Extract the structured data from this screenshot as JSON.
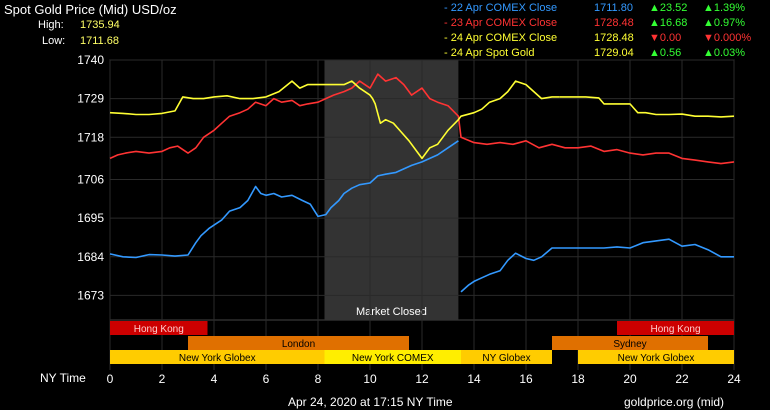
{
  "header": {
    "title": "Spot Gold Price (Mid) USD/oz",
    "high_label": "High:",
    "high_value": "1735.94",
    "low_label": "Low:",
    "low_value": "1711.68"
  },
  "legend": [
    {
      "name": "22 Apr COMEX Close",
      "value": "1711.80",
      "change": "▲23.52",
      "pct": "▲1.39%",
      "color": "#3399ff",
      "dir": "up"
    },
    {
      "name": "23 Apr COMEX Close",
      "value": "1728.48",
      "change": "▲16.68",
      "pct": "▲0.97%",
      "color": "#ff3333",
      "dir": "up"
    },
    {
      "name": "24 Apr COMEX Close",
      "value": "1728.48",
      "change": "▼0.00",
      "pct": "▼0.000%",
      "color": "#ffff33",
      "dir": "down"
    },
    {
      "name": "24 Apr Spot Gold",
      "value": "1729.04",
      "change": "▲0.56",
      "pct": "▲0.03%",
      "color": "#ffff33",
      "dir": "up"
    }
  ],
  "footer": {
    "timestamp": "Apr 24, 2020 at 17:15 NY Time",
    "source": "goldprice.org (mid)",
    "x_axis_label": "NY Time"
  },
  "market_closed_label": "Market Closed",
  "sessions": [
    {
      "label": "Hong Kong",
      "row": 0,
      "start": 0,
      "end": 3.75,
      "color": "#cc0000"
    },
    {
      "label": "Hong Kong",
      "row": 0,
      "start": 19.5,
      "end": 24,
      "color": "#cc0000"
    },
    {
      "label": "London",
      "row": 1,
      "start": 3,
      "end": 11.5,
      "color": "#e07000"
    },
    {
      "label": "Sydney",
      "row": 2,
      "start": 17,
      "end": 19.5,
      "color": "#e07000"
    },
    {
      "label": "Sydney",
      "row": 1,
      "start": 17,
      "end": 23,
      "color": "#e07000"
    },
    {
      "label": "New York Globex",
      "row": 2,
      "start": 0,
      "end": 8.25,
      "color": "#ffcc00"
    },
    {
      "label": "New York COMEX",
      "row": 2,
      "start": 8.25,
      "end": 13.5,
      "color": "#ffee00"
    },
    {
      "label": "NY Globex",
      "row": 2,
      "start": 13.5,
      "end": 17,
      "color": "#ffcc00"
    },
    {
      "label": "New York Globex",
      "row": 2,
      "start": 18,
      "end": 24,
      "color": "#ffcc00"
    }
  ],
  "chart_data": {
    "type": "line",
    "xlabel": "NY Time",
    "xlim": [
      0,
      24
    ],
    "ylim": [
      1666,
      1740
    ],
    "x_ticks": [
      0,
      2,
      4,
      6,
      8,
      10,
      12,
      14,
      16,
      18,
      20,
      22,
      24
    ],
    "y_ticks": [
      1740,
      1729,
      1718,
      1706,
      1695,
      1684,
      1673
    ],
    "grid": true,
    "market_closed_range": [
      8.25,
      13.4
    ],
    "series": [
      {
        "name": "22 Apr COMEX Close",
        "color": "#3399ff",
        "points": [
          [
            0,
            1684.8
          ],
          [
            0.5,
            1684
          ],
          [
            1,
            1683.8
          ],
          [
            1.5,
            1684.6
          ],
          [
            2,
            1684.5
          ],
          [
            2.5,
            1684.2
          ],
          [
            3,
            1684.5
          ],
          [
            3.3,
            1688
          ],
          [
            3.5,
            1690
          ],
          [
            3.8,
            1692
          ],
          [
            4,
            1693
          ],
          [
            4.3,
            1694.5
          ],
          [
            4.6,
            1697
          ],
          [
            5,
            1698
          ],
          [
            5.3,
            1700
          ],
          [
            5.6,
            1704
          ],
          [
            5.8,
            1702
          ],
          [
            6,
            1701.5
          ],
          [
            6.3,
            1702
          ],
          [
            6.6,
            1701
          ],
          [
            7,
            1701.5
          ],
          [
            7.4,
            1700
          ],
          [
            7.7,
            1699
          ],
          [
            8,
            1695.5
          ],
          [
            8.3,
            1696
          ],
          [
            8.5,
            1698
          ],
          [
            8.8,
            1700
          ],
          [
            9,
            1702
          ],
          [
            9.3,
            1703.5
          ],
          [
            9.6,
            1704.5
          ],
          [
            10,
            1705
          ],
          [
            10.3,
            1707
          ],
          [
            10.6,
            1707.5
          ],
          [
            11,
            1708
          ],
          [
            11.3,
            1709
          ],
          [
            11.6,
            1710
          ],
          [
            12,
            1711
          ],
          [
            12.3,
            1712
          ],
          [
            12.6,
            1713
          ],
          [
            13,
            1715
          ],
          [
            13.4,
            1717
          ],
          [
            13.5,
            1674
          ],
          [
            13.8,
            1676
          ],
          [
            14,
            1677
          ],
          [
            14.3,
            1678
          ],
          [
            14.6,
            1679
          ],
          [
            15,
            1680
          ],
          [
            15.3,
            1683
          ],
          [
            15.6,
            1685
          ],
          [
            16,
            1683.5
          ],
          [
            16.3,
            1683
          ],
          [
            16.6,
            1684
          ],
          [
            17,
            1686.5
          ],
          [
            17.5,
            1686.5
          ],
          [
            18,
            1686.5
          ],
          [
            18.5,
            1686.5
          ],
          [
            19,
            1686.5
          ],
          [
            19.5,
            1686.8
          ],
          [
            20,
            1686.5
          ],
          [
            20.5,
            1688
          ],
          [
            21,
            1688.5
          ],
          [
            21.5,
            1689
          ],
          [
            22,
            1687
          ],
          [
            22.5,
            1687.5
          ],
          [
            23,
            1686
          ],
          [
            23.5,
            1684
          ],
          [
            24,
            1684
          ]
        ]
      },
      {
        "name": "23 Apr COMEX Close",
        "color": "#ff3333",
        "points": [
          [
            0,
            1712
          ],
          [
            0.3,
            1713
          ],
          [
            0.6,
            1713.5
          ],
          [
            1,
            1714
          ],
          [
            1.5,
            1713.5
          ],
          [
            2,
            1714
          ],
          [
            2.3,
            1715
          ],
          [
            2.6,
            1715.5
          ],
          [
            3,
            1713.5
          ],
          [
            3.3,
            1715
          ],
          [
            3.6,
            1718
          ],
          [
            4,
            1720
          ],
          [
            4.3,
            1722
          ],
          [
            4.6,
            1724
          ],
          [
            5,
            1725
          ],
          [
            5.3,
            1726
          ],
          [
            5.6,
            1728
          ],
          [
            6,
            1727
          ],
          [
            6.3,
            1729
          ],
          [
            6.6,
            1728
          ],
          [
            7,
            1728.5
          ],
          [
            7.3,
            1727
          ],
          [
            7.6,
            1727.5
          ],
          [
            8,
            1728
          ],
          [
            8.3,
            1729
          ],
          [
            8.6,
            1730
          ],
          [
            9,
            1731
          ],
          [
            9.3,
            1732
          ],
          [
            9.6,
            1734
          ],
          [
            10,
            1732
          ],
          [
            10.3,
            1736
          ],
          [
            10.6,
            1734
          ],
          [
            11,
            1735
          ],
          [
            11.3,
            1733
          ],
          [
            11.6,
            1730
          ],
          [
            12,
            1732
          ],
          [
            12.3,
            1729
          ],
          [
            12.6,
            1728
          ],
          [
            13,
            1727
          ],
          [
            13.4,
            1724
          ],
          [
            13.5,
            1718
          ],
          [
            14,
            1716.5
          ],
          [
            14.5,
            1716
          ],
          [
            15,
            1716.5
          ],
          [
            15.5,
            1716
          ],
          [
            16,
            1717
          ],
          [
            16.5,
            1715
          ],
          [
            17,
            1716
          ],
          [
            17.5,
            1715
          ],
          [
            18,
            1715
          ],
          [
            18.5,
            1715.5
          ],
          [
            19,
            1714
          ],
          [
            19.5,
            1714.5
          ],
          [
            20,
            1713.5
          ],
          [
            20.5,
            1713
          ],
          [
            21,
            1713.5
          ],
          [
            21.5,
            1713.5
          ],
          [
            22,
            1712
          ],
          [
            22.5,
            1711.5
          ],
          [
            23,
            1711
          ],
          [
            23.5,
            1710.5
          ],
          [
            24,
            1711
          ]
        ]
      },
      {
        "name": "24 Apr COMEX Close",
        "color": "#ffff33",
        "points": [
          [
            0,
            1725
          ],
          [
            0.5,
            1724.8
          ],
          [
            1,
            1724.5
          ],
          [
            1.5,
            1724.5
          ],
          [
            2,
            1724.8
          ],
          [
            2.5,
            1725.5
          ],
          [
            2.8,
            1729.5
          ],
          [
            3.2,
            1729
          ],
          [
            3.6,
            1729
          ],
          [
            4,
            1729.5
          ],
          [
            4.5,
            1729.8
          ],
          [
            5,
            1729
          ],
          [
            5.5,
            1729
          ],
          [
            6,
            1729.5
          ],
          [
            6.5,
            1731
          ],
          [
            7,
            1734
          ],
          [
            7.3,
            1732
          ],
          [
            7.6,
            1733
          ],
          [
            8,
            1733
          ],
          [
            8.5,
            1733
          ],
          [
            9,
            1733
          ],
          [
            9.3,
            1734
          ],
          [
            9.6,
            1732
          ],
          [
            10,
            1730
          ],
          [
            10.1,
            1729
          ],
          [
            10.2,
            1727.5
          ],
          [
            10.4,
            1722
          ],
          [
            10.6,
            1723
          ],
          [
            10.9,
            1722
          ],
          [
            11.2,
            1719.5
          ],
          [
            11.5,
            1717
          ],
          [
            11.8,
            1714
          ],
          [
            12,
            1712
          ],
          [
            12.3,
            1715
          ],
          [
            12.6,
            1716
          ],
          [
            13,
            1720
          ],
          [
            13.4,
            1723
          ],
          [
            13.5,
            1724
          ],
          [
            14,
            1725
          ],
          [
            14.3,
            1726
          ],
          [
            14.6,
            1728
          ],
          [
            15,
            1729
          ],
          [
            15.3,
            1731
          ],
          [
            15.6,
            1734
          ],
          [
            16,
            1733
          ],
          [
            16.3,
            1731
          ],
          [
            16.6,
            1729
          ],
          [
            17,
            1729.5
          ],
          [
            17.3,
            1729.5
          ]
        ]
      },
      {
        "name": "24 Apr Spot Gold",
        "color": "#ffff33",
        "points": [
          [
            17.3,
            1729.5
          ],
          [
            17.8,
            1729.5
          ],
          [
            18.3,
            1729.5
          ],
          [
            18.8,
            1729.2
          ],
          [
            19,
            1727.5
          ],
          [
            19.5,
            1727.5
          ],
          [
            20,
            1727.5
          ],
          [
            20.3,
            1725
          ],
          [
            20.6,
            1725
          ],
          [
            21,
            1724.5
          ],
          [
            21.5,
            1724.5
          ],
          [
            22,
            1724.6
          ],
          [
            22.5,
            1724
          ],
          [
            23,
            1724
          ],
          [
            23.5,
            1723.8
          ],
          [
            24,
            1724
          ]
        ]
      }
    ]
  }
}
